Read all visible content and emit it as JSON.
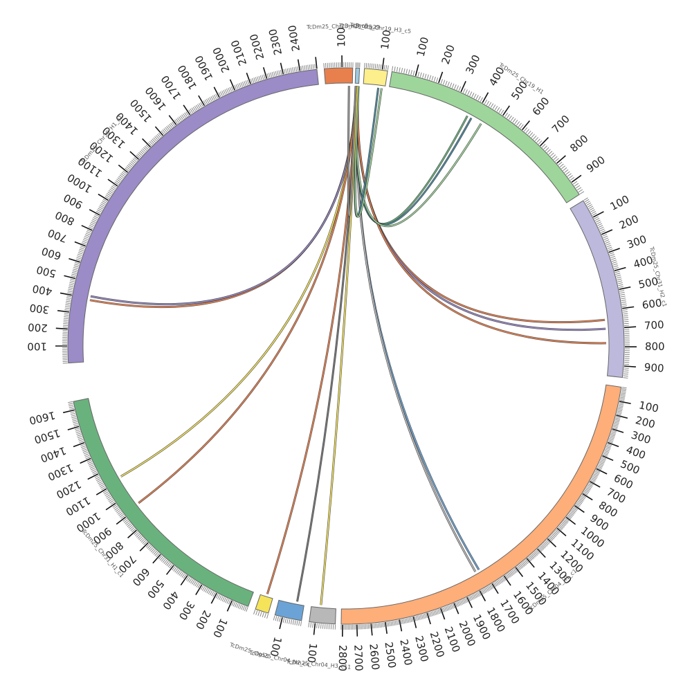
{
  "diagram": {
    "type": "circos",
    "chromosomes": [
      {
        "id": "chr30",
        "name": "TcDm25_Chr30_H1_c1",
        "length": 2500,
        "color": "#9b8bc7",
        "tick_labels": [
          "100",
          "200",
          "300",
          "400",
          "500",
          "600",
          "700",
          "800",
          "900",
          "1000",
          "1100",
          "1200",
          "1300",
          "1400",
          "1500",
          "1600",
          "1700",
          "1800",
          "1900",
          "2000",
          "2100",
          "2200",
          "2300",
          "2400"
        ]
      },
      {
        "id": "ctgA",
        "name": "TcDm25_Chr23_H3_c6",
        "length": 160,
        "color": "#e8804e",
        "tick_labels": [
          "100"
        ]
      },
      {
        "id": "ctgB",
        "name": "TcDm25_ctg29",
        "length": 30,
        "color": "#9ecae1",
        "tick_labels": []
      },
      {
        "id": "ctgC",
        "name": "TcDm25_Chr19_H3_c5",
        "length": 130,
        "color": "#fcef8c",
        "tick_labels": [
          "100"
        ]
      },
      {
        "id": "chr19",
        "name": "TcDm25_Chr19_H1",
        "length": 960,
        "color": "#9ed59b",
        "tick_labels": [
          "100",
          "200",
          "300",
          "400",
          "500",
          "600",
          "700",
          "800",
          "900"
        ]
      },
      {
        "id": "chr31h2",
        "name": "TcDm25_Chr31_H2_c1",
        "length": 960,
        "color": "#bcb9dc",
        "tick_labels": [
          "100",
          "200",
          "300",
          "400",
          "500",
          "600",
          "700",
          "800",
          "900"
        ]
      },
      {
        "id": "chr04",
        "name": "TcDm25_Chr04_H1_c1",
        "length": 2810,
        "color": "#fdae79",
        "tick_labels": [
          "100",
          "200",
          "300",
          "400",
          "500",
          "600",
          "700",
          "800",
          "900",
          "1000",
          "1100",
          "1200",
          "1300",
          "1400",
          "1500",
          "1600",
          "1700",
          "1800",
          "1900",
          "2000",
          "2100",
          "2200",
          "2300",
          "2400",
          "2500",
          "2600",
          "2700",
          "2800"
        ]
      },
      {
        "id": "ctgD",
        "name": "TcDm25_Chr04_H3_c11",
        "length": 130,
        "color": "#b8b8b8",
        "tick_labels": [
          "100"
        ]
      },
      {
        "id": "ctgE",
        "name": "TcDm25_Chr04_H2_c4",
        "length": 140,
        "color": "#6ba3d6",
        "tick_labels": [
          "100"
        ]
      },
      {
        "id": "ctgF",
        "name": "TcDm25_ctg55",
        "length": 60,
        "color": "#f5e35a",
        "tick_labels": []
      },
      {
        "id": "chr31h1",
        "name": "TcDm25_Chr31_H1_c1",
        "length": 1650,
        "color": "#6ab27d",
        "tick_labels": [
          "100",
          "200",
          "300",
          "400",
          "500",
          "600",
          "700",
          "800",
          "900",
          "1000",
          "1100",
          "1200",
          "1300",
          "1400",
          "1500",
          "1600"
        ]
      }
    ],
    "links": [
      {
        "from": "ctgB",
        "from_pos": 12,
        "to": "chr30",
        "to_pos": 390,
        "color": "#e8804e"
      },
      {
        "from": "ctgB",
        "from_pos": 16,
        "to": "chr30",
        "to_pos": 415,
        "color": "#9b8bc7"
      },
      {
        "from": "ctgB",
        "from_pos": 8,
        "to": "chr31h1",
        "to_pos": 1120,
        "color": "#f5e35a"
      },
      {
        "from": "ctgB",
        "from_pos": 10,
        "to": "chr31h1",
        "to_pos": 920,
        "color": "#e8804e"
      },
      {
        "from": "ctgB",
        "from_pos": 20,
        "to": "chr04",
        "to_pos": 1730,
        "color": "#6ba3d6"
      },
      {
        "from": "ctgB",
        "from_pos": 18,
        "to": "chr04",
        "to_pos": 1760,
        "color": "#bbbbbb"
      },
      {
        "from": "ctgB",
        "from_pos": 24,
        "to": "chr31h2",
        "to_pos": 650,
        "color": "#e8804e"
      },
      {
        "from": "ctgB",
        "from_pos": 22,
        "to": "chr31h2",
        "to_pos": 700,
        "color": "#9b8bc7"
      },
      {
        "from": "ctgB",
        "from_pos": 26,
        "to": "chr31h2",
        "to_pos": 780,
        "color": "#e8804e"
      },
      {
        "from": "ctgB",
        "from_pos": 14,
        "to": "chr19",
        "to_pos": 370,
        "color": "#6ab27d"
      },
      {
        "from": "ctgB",
        "from_pos": 15,
        "to": "chr19",
        "to_pos": 390,
        "color": "#4a8aa0"
      },
      {
        "from": "ctgB",
        "from_pos": 17,
        "to": "chr19",
        "to_pos": 440,
        "color": "#9ed59b"
      },
      {
        "from": "ctgB",
        "from_pos": 27,
        "to": "ctgC",
        "to_pos": 90,
        "color": "#4a8aa0"
      },
      {
        "from": "ctgB",
        "from_pos": 29,
        "to": "ctgC",
        "to_pos": 110,
        "color": "#9ed59b"
      },
      {
        "from": "ctgB",
        "from_pos": 11,
        "to": "ctgF",
        "to_pos": 30,
        "color": "#e8804e"
      },
      {
        "from": "ctgB",
        "from_pos": 13,
        "to": "ctgE",
        "to_pos": 40,
        "color": "#777777"
      },
      {
        "from": "ctgB",
        "from_pos": 19,
        "to": "ctgD",
        "to_pos": 80,
        "color": "#f5e35a"
      },
      {
        "from": "ctgB",
        "from_pos": 5,
        "to": "ctgA",
        "to_pos": 140,
        "color": "#999999"
      }
    ]
  }
}
